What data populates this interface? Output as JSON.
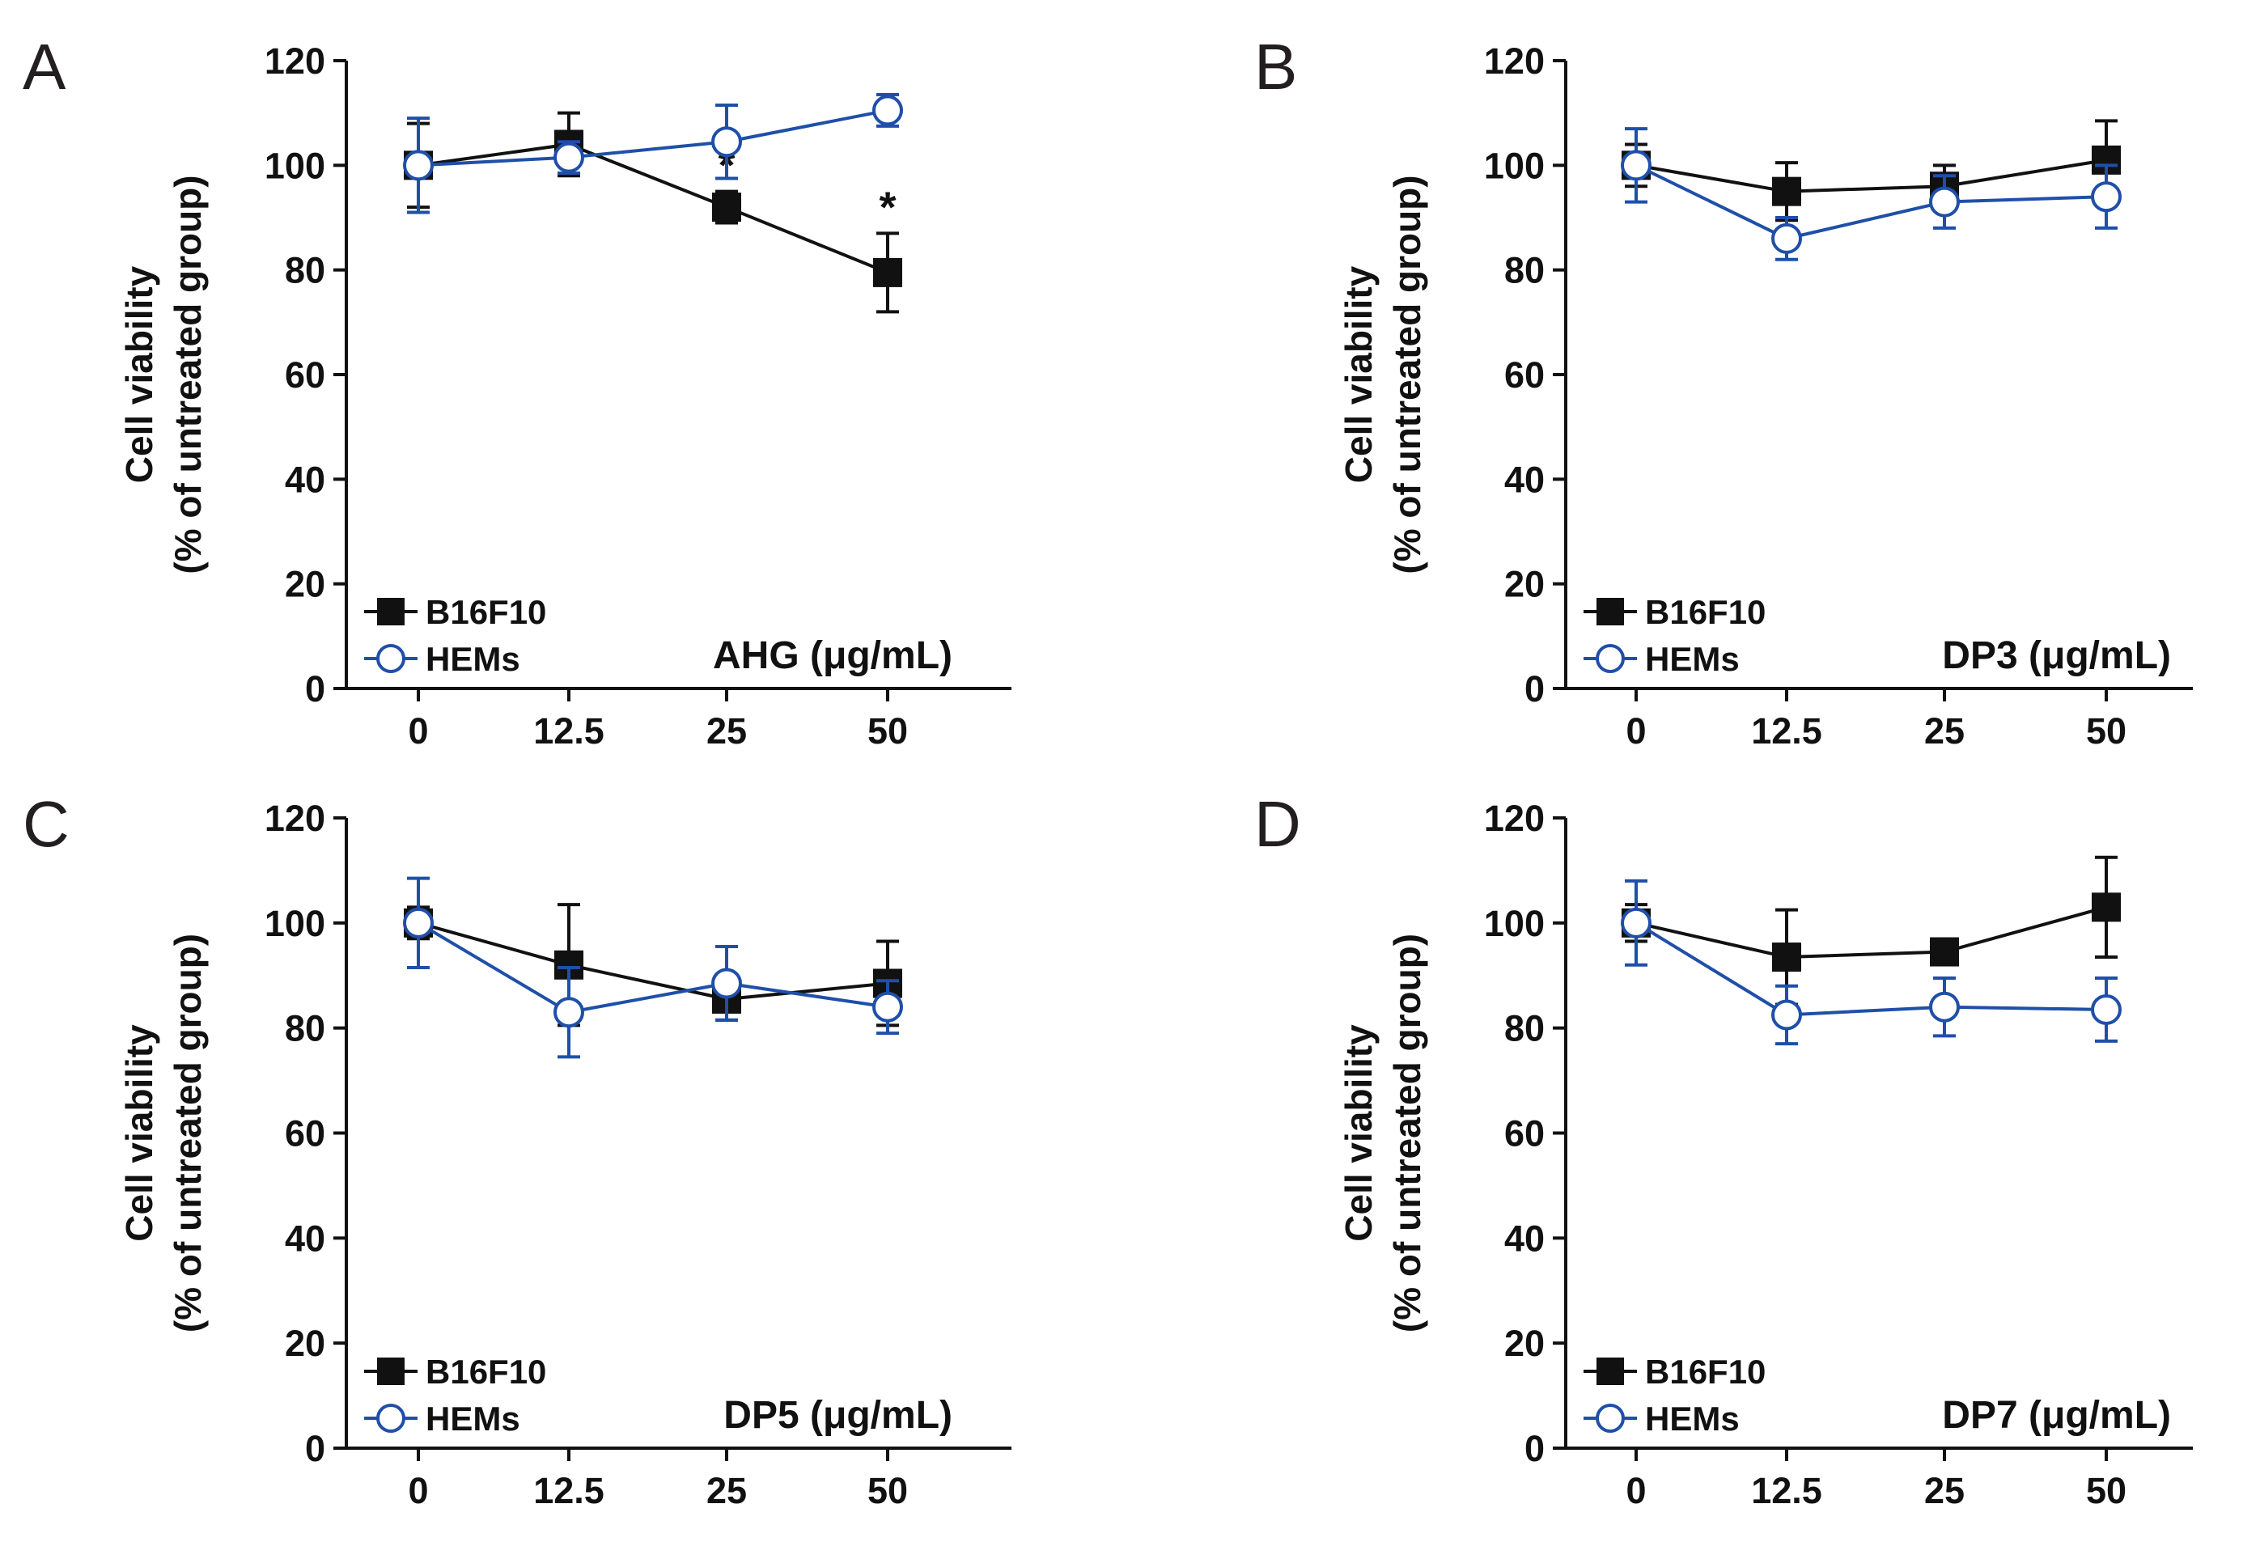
{
  "chart_data": [
    {
      "type": "line",
      "panel_label": "A",
      "categories": [
        "0",
        "12.5",
        "25",
        "50"
      ],
      "x_title": "AHG (μg/mL)",
      "ylabel_line1": "Cell viability",
      "ylabel_line2": "(% of untreated group)",
      "ylim": [
        0,
        120
      ],
      "yticks": [
        "0",
        "20",
        "40",
        "60",
        "80",
        "100",
        "120"
      ],
      "legend_position": "bottom-left",
      "series": [
        {
          "name": "B16F10",
          "color": "#111111",
          "marker": "square",
          "values": [
            100,
            104,
            92,
            79.5
          ],
          "errors": [
            8,
            6,
            3,
            7.5
          ],
          "significance": [
            "",
            "",
            "*",
            "*"
          ]
        },
        {
          "name": "HEMs",
          "color": "#1f4fa8",
          "marker": "circle",
          "values": [
            100,
            101.5,
            104.5,
            110.5
          ],
          "errors": [
            9,
            3,
            7,
            3
          ],
          "significance": [
            "",
            "",
            "",
            ""
          ]
        }
      ]
    },
    {
      "type": "line",
      "panel_label": "B",
      "categories": [
        "0",
        "12.5",
        "25",
        "50"
      ],
      "x_title": "DP3 (μg/mL)",
      "ylabel_line1": "Cell viability",
      "ylabel_line2": "(% of untreated group)",
      "ylim": [
        0,
        120
      ],
      "yticks": [
        "0",
        "20",
        "40",
        "60",
        "80",
        "100",
        "120"
      ],
      "legend_position": "bottom-left",
      "series": [
        {
          "name": "B16F10",
          "color": "#111111",
          "marker": "square",
          "values": [
            100,
            95,
            96,
            101
          ],
          "errors": [
            4,
            5.5,
            4,
            7.5
          ],
          "significance": [
            "",
            "",
            "",
            ""
          ]
        },
        {
          "name": "HEMs",
          "color": "#1f4fa8",
          "marker": "circle",
          "values": [
            100,
            86,
            93,
            94
          ],
          "errors": [
            7,
            4,
            5,
            6
          ],
          "significance": [
            "",
            "",
            "",
            ""
          ]
        }
      ]
    },
    {
      "type": "line",
      "panel_label": "C",
      "categories": [
        "0",
        "12.5",
        "25",
        "50"
      ],
      "x_title": "DP5 (μg/mL)",
      "ylabel_line1": "Cell viability",
      "ylabel_line2": "(% of untreated group)",
      "ylim": [
        0,
        120
      ],
      "yticks": [
        "0",
        "20",
        "40",
        "60",
        "80",
        "100",
        "120"
      ],
      "legend_position": "bottom-left",
      "series": [
        {
          "name": "B16F10",
          "color": "#111111",
          "marker": "square",
          "values": [
            100,
            92,
            85.5,
            88.5
          ],
          "errors": [
            3,
            11.5,
            4,
            8
          ],
          "significance": [
            "",
            "",
            "",
            ""
          ]
        },
        {
          "name": "HEMs",
          "color": "#1f4fa8",
          "marker": "circle",
          "values": [
            100,
            83,
            88.5,
            84
          ],
          "errors": [
            8.5,
            8.5,
            7,
            5
          ],
          "significance": [
            "",
            "",
            "",
            ""
          ]
        }
      ]
    },
    {
      "type": "line",
      "panel_label": "D",
      "categories": [
        "0",
        "12.5",
        "25",
        "50"
      ],
      "x_title": "DP7 (μg/mL)",
      "ylabel_line1": "Cell viability",
      "ylabel_line2": "(% of untreated group)",
      "ylim": [
        0,
        120
      ],
      "yticks": [
        "0",
        "20",
        "40",
        "60",
        "80",
        "100",
        "120"
      ],
      "legend_position": "bottom-left",
      "series": [
        {
          "name": "B16F10",
          "color": "#111111",
          "marker": "square",
          "values": [
            100,
            93.5,
            94.5,
            103
          ],
          "errors": [
            3.5,
            9,
            2,
            9.5
          ],
          "significance": [
            "",
            "",
            "",
            ""
          ]
        },
        {
          "name": "HEMs",
          "color": "#1f4fa8",
          "marker": "circle",
          "values": [
            100,
            82.5,
            84,
            83.5
          ],
          "errors": [
            8,
            5.5,
            5.5,
            6
          ],
          "significance": [
            "",
            "",
            "",
            ""
          ]
        }
      ]
    }
  ]
}
